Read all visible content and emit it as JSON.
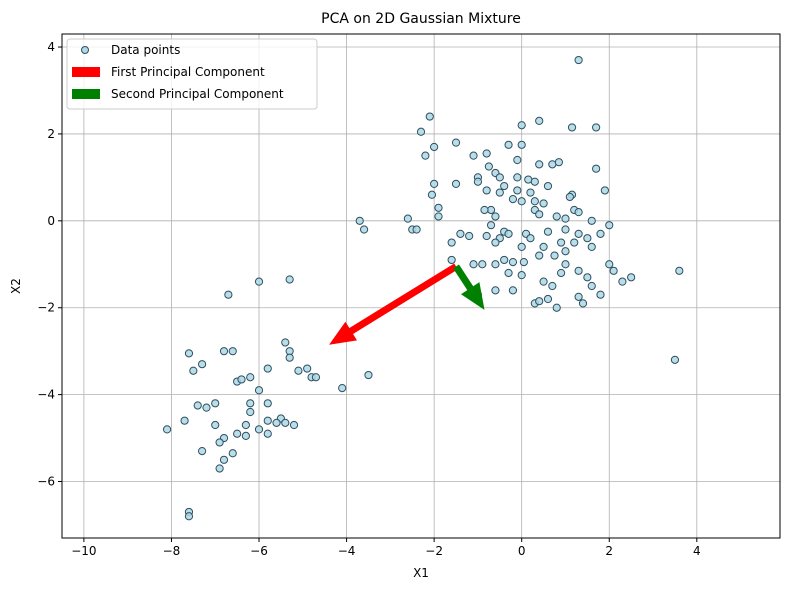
{
  "chart_data": {
    "type": "scatter",
    "title": "PCA on 2D Gaussian Mixture",
    "xlabel": "X1",
    "ylabel": "X2",
    "xlim": [
      -10.5,
      5.9
    ],
    "ylim": [
      -7.3,
      4.3
    ],
    "xticks": [
      -10,
      -8,
      -6,
      -4,
      -2,
      0,
      2,
      4
    ],
    "yticks": [
      -6,
      -4,
      -2,
      0,
      2,
      4
    ],
    "grid": true,
    "legend_position": "top-left",
    "colors": {
      "points_fill": "#add8e6",
      "points_edge": "#2f4f5f",
      "first_component": "#ff0000",
      "second_component": "#008000",
      "grid": "#b0b0b0"
    },
    "legend": [
      {
        "label": "Data points",
        "kind": "marker"
      },
      {
        "label": "First Principal Component",
        "kind": "patch",
        "color": "#ff0000"
      },
      {
        "label": "Second Principal Component",
        "kind": "patch",
        "color": "#008000"
      }
    ],
    "arrows": [
      {
        "name": "First Principal Component",
        "start": [
          -1.5,
          -1.05
        ],
        "end": [
          -4.4,
          -2.85
        ],
        "color": "#ff0000"
      },
      {
        "name": "Second Principal Component",
        "start": [
          -1.5,
          -1.05
        ],
        "end": [
          -0.85,
          -2.05
        ],
        "color": "#008000"
      }
    ],
    "series": [
      {
        "name": "Data points",
        "points": [
          [
            1.3,
            3.7
          ],
          [
            -2.1,
            2.4
          ],
          [
            0.0,
            2.2
          ],
          [
            0.4,
            2.3
          ],
          [
            -2.3,
            2.05
          ],
          [
            1.15,
            2.15
          ],
          [
            1.7,
            2.15
          ],
          [
            -2.0,
            1.7
          ],
          [
            -1.5,
            1.8
          ],
          [
            -1.1,
            1.5
          ],
          [
            -0.8,
            1.55
          ],
          [
            -2.2,
            1.5
          ],
          [
            -0.3,
            1.75
          ],
          [
            0.0,
            1.75
          ],
          [
            0.7,
            1.3
          ],
          [
            0.85,
            1.35
          ],
          [
            -0.1,
            1.4
          ],
          [
            0.4,
            1.3
          ],
          [
            -0.75,
            1.25
          ],
          [
            1.7,
            1.2
          ],
          [
            -0.6,
            1.1
          ],
          [
            -1.0,
            1.0
          ],
          [
            -0.5,
            1.0
          ],
          [
            -0.1,
            1.0
          ],
          [
            0.15,
            0.95
          ],
          [
            -1.0,
            0.9
          ],
          [
            -2.0,
            0.85
          ],
          [
            -1.5,
            0.85
          ],
          [
            -0.4,
            0.8
          ],
          [
            0.3,
            0.9
          ],
          [
            0.6,
            0.8
          ],
          [
            -0.8,
            0.7
          ],
          [
            -0.5,
            0.65
          ],
          [
            -0.1,
            0.7
          ],
          [
            0.2,
            0.65
          ],
          [
            1.15,
            0.6
          ],
          [
            1.9,
            0.7
          ],
          [
            -2.05,
            0.6
          ],
          [
            -0.2,
            0.5
          ],
          [
            0.0,
            0.45
          ],
          [
            0.3,
            0.45
          ],
          [
            0.5,
            0.4
          ],
          [
            1.1,
            0.55
          ],
          [
            -1.9,
            0.3
          ],
          [
            -0.7,
            0.25
          ],
          [
            -0.85,
            0.25
          ],
          [
            0.3,
            0.25
          ],
          [
            0.8,
            0.1
          ],
          [
            1.2,
            0.25
          ],
          [
            -2.6,
            0.05
          ],
          [
            -3.7,
            0.0
          ],
          [
            -1.9,
            0.1
          ],
          [
            -0.6,
            0.1
          ],
          [
            0.4,
            0.15
          ],
          [
            1.0,
            0.05
          ],
          [
            1.3,
            0.2
          ],
          [
            1.6,
            0.0
          ],
          [
            2.0,
            -0.1
          ],
          [
            -3.6,
            -0.2
          ],
          [
            -2.5,
            -0.2
          ],
          [
            -2.4,
            -0.2
          ],
          [
            -1.4,
            -0.3
          ],
          [
            -0.7,
            -0.1
          ],
          [
            -0.4,
            -0.25
          ],
          [
            0.1,
            -0.3
          ],
          [
            0.6,
            -0.25
          ],
          [
            1.0,
            -0.2
          ],
          [
            1.3,
            -0.3
          ],
          [
            1.8,
            -0.3
          ],
          [
            -1.2,
            -0.35
          ],
          [
            -0.8,
            -0.35
          ],
          [
            -0.5,
            -0.4
          ],
          [
            -0.3,
            -0.3
          ],
          [
            0.2,
            -0.4
          ],
          [
            0.9,
            -0.5
          ],
          [
            1.5,
            -0.4
          ],
          [
            -1.6,
            -0.5
          ],
          [
            -0.6,
            -0.5
          ],
          [
            0.0,
            -0.6
          ],
          [
            0.5,
            -0.6
          ],
          [
            1.0,
            -0.7
          ],
          [
            1.2,
            -0.5
          ],
          [
            1.6,
            -0.6
          ],
          [
            -0.4,
            -0.9
          ],
          [
            -0.2,
            -0.95
          ],
          [
            0.05,
            -0.95
          ],
          [
            0.4,
            -0.8
          ],
          [
            0.75,
            -0.8
          ],
          [
            1.0,
            -1.0
          ],
          [
            -1.1,
            -1.0
          ],
          [
            -0.9,
            -1.0
          ],
          [
            -0.6,
            -1.0
          ],
          [
            1.3,
            -1.15
          ],
          [
            2.0,
            -1.0
          ],
          [
            3.6,
            -1.15
          ],
          [
            -1.6,
            -0.9
          ],
          [
            -0.3,
            -1.2
          ],
          [
            0.0,
            -1.25
          ],
          [
            0.9,
            -1.2
          ],
          [
            1.5,
            -1.3
          ],
          [
            2.1,
            -1.15
          ],
          [
            2.5,
            -1.3
          ],
          [
            0.5,
            -1.4
          ],
          [
            0.7,
            -1.5
          ],
          [
            1.6,
            -1.5
          ],
          [
            2.3,
            -1.4
          ],
          [
            -0.6,
            -1.6
          ],
          [
            -0.2,
            -1.6
          ],
          [
            0.6,
            -1.8
          ],
          [
            1.3,
            -1.75
          ],
          [
            1.8,
            -1.7
          ],
          [
            0.3,
            -1.9
          ],
          [
            0.8,
            -2.0
          ],
          [
            1.4,
            -1.9
          ],
          [
            0.4,
            -1.85
          ],
          [
            -1.0,
            -1.7
          ],
          [
            3.5,
            -3.2
          ],
          [
            -6.0,
            -1.4
          ],
          [
            -5.3,
            -1.35
          ],
          [
            -6.7,
            -1.7
          ],
          [
            -5.4,
            -2.8
          ],
          [
            -7.6,
            -3.05
          ],
          [
            -6.8,
            -3.0
          ],
          [
            -6.6,
            -3.0
          ],
          [
            -5.3,
            -3.0
          ],
          [
            -5.3,
            -3.15
          ],
          [
            -7.3,
            -3.3
          ],
          [
            -7.5,
            -3.45
          ],
          [
            -5.8,
            -3.4
          ],
          [
            -5.1,
            -3.45
          ],
          [
            -4.9,
            -3.4
          ],
          [
            -4.8,
            -3.6
          ],
          [
            -4.7,
            -3.6
          ],
          [
            -3.5,
            -3.55
          ],
          [
            -6.5,
            -3.7
          ],
          [
            -6.4,
            -3.65
          ],
          [
            -6.2,
            -3.6
          ],
          [
            -6.0,
            -3.9
          ],
          [
            -4.1,
            -3.85
          ],
          [
            -7.4,
            -4.25
          ],
          [
            -7.2,
            -4.3
          ],
          [
            -7.0,
            -4.2
          ],
          [
            -6.2,
            -4.2
          ],
          [
            -5.8,
            -4.2
          ],
          [
            -7.7,
            -4.6
          ],
          [
            -6.2,
            -4.4
          ],
          [
            -5.8,
            -4.6
          ],
          [
            -5.5,
            -4.55
          ],
          [
            -5.4,
            -4.65
          ],
          [
            -5.2,
            -4.7
          ],
          [
            -8.1,
            -4.8
          ],
          [
            -7.0,
            -4.7
          ],
          [
            -6.3,
            -4.7
          ],
          [
            -6.0,
            -4.8
          ],
          [
            -6.8,
            -5.0
          ],
          [
            -6.5,
            -4.9
          ],
          [
            -6.3,
            -4.95
          ],
          [
            -5.8,
            -4.9
          ],
          [
            -5.6,
            -4.65
          ],
          [
            -6.9,
            -5.1
          ],
          [
            -7.3,
            -5.3
          ],
          [
            -6.6,
            -5.35
          ],
          [
            -6.8,
            -5.5
          ],
          [
            -6.9,
            -5.7
          ],
          [
            -7.6,
            -6.7
          ],
          [
            -7.6,
            -6.8
          ]
        ]
      }
    ]
  }
}
